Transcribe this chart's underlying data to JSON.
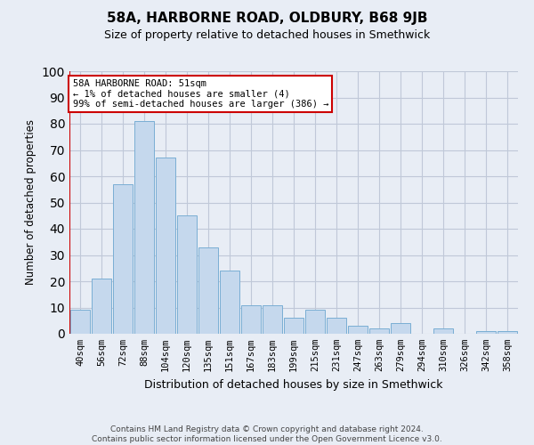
{
  "title": "58A, HARBORNE ROAD, OLDBURY, B68 9JB",
  "subtitle": "Size of property relative to detached houses in Smethwick",
  "xlabel": "Distribution of detached houses by size in Smethwick",
  "ylabel": "Number of detached properties",
  "bar_labels": [
    "40sqm",
    "56sqm",
    "72sqm",
    "88sqm",
    "104sqm",
    "120sqm",
    "135sqm",
    "151sqm",
    "167sqm",
    "183sqm",
    "199sqm",
    "215sqm",
    "231sqm",
    "247sqm",
    "263sqm",
    "279sqm",
    "294sqm",
    "310sqm",
    "326sqm",
    "342sqm",
    "358sqm"
  ],
  "bar_values": [
    9,
    21,
    57,
    81,
    67,
    45,
    33,
    24,
    11,
    11,
    6,
    9,
    6,
    3,
    2,
    4,
    0,
    2,
    0,
    1,
    1
  ],
  "bar_color": "#c5d8ed",
  "bar_edge_color": "#7aaed4",
  "highlight_color": "#cc0000",
  "annotation_text": "58A HARBORNE ROAD: 51sqm\n← 1% of detached houses are smaller (4)\n99% of semi-detached houses are larger (386) →",
  "annotation_box_color": "#ffffff",
  "annotation_box_edge": "#cc0000",
  "ylim": [
    0,
    100
  ],
  "yticks": [
    0,
    10,
    20,
    30,
    40,
    50,
    60,
    70,
    80,
    90,
    100
  ],
  "grid_color": "#c0c8d8",
  "bg_color": "#e8edf5",
  "footer": "Contains HM Land Registry data © Crown copyright and database right 2024.\nContains public sector information licensed under the Open Government Licence v3.0."
}
